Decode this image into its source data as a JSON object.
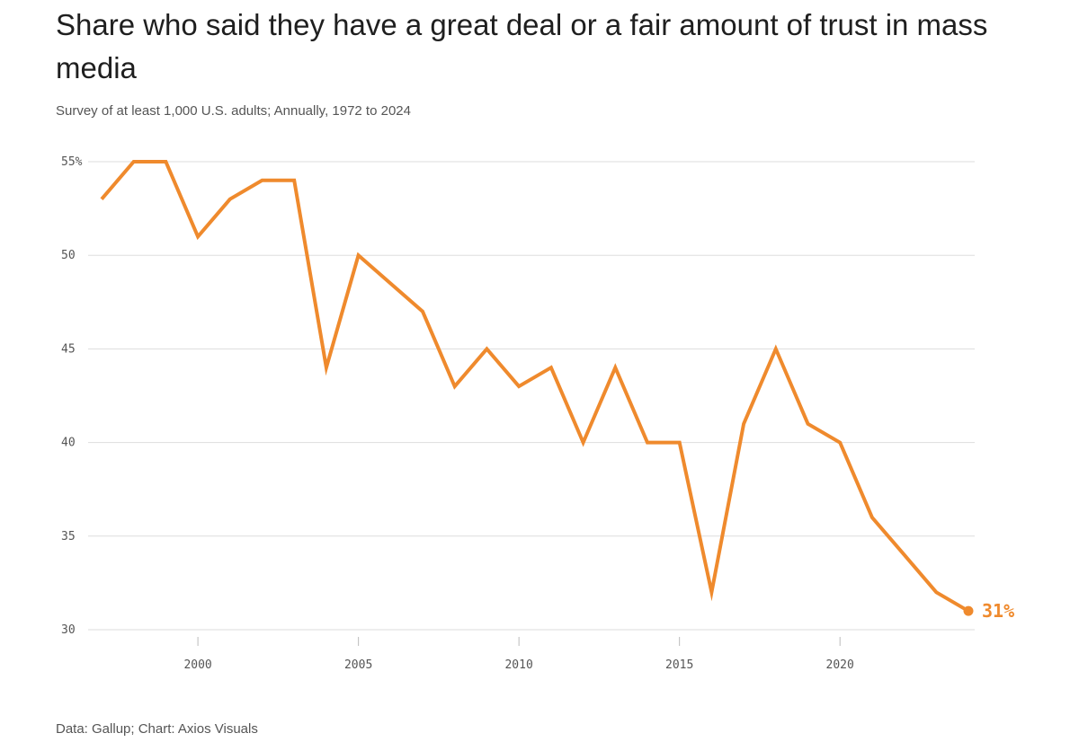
{
  "title": "Share who said they have a great deal or a fair amount of trust in mass media",
  "subtitle": "Survey of at least 1,000 U.S. adults; Annually, 1972 to 2024",
  "footer": "Data: Gallup; Chart: Axios Visuals",
  "colors": {
    "line": "#ef8a2d",
    "grid": "#dddddd",
    "text": "#555555"
  },
  "chart_data": {
    "type": "line",
    "title": "Share who said they have a great deal or a fair amount of trust in mass media",
    "subtitle": "Survey of at least 1,000 U.S. adults; Annually, 1972 to 2024",
    "xlabel": "",
    "ylabel": "",
    "xlim": [
      1997,
      2024
    ],
    "ylim": [
      30,
      55
    ],
    "grid": true,
    "legend": "none",
    "x": [
      1997,
      1998,
      1999,
      2000,
      2001,
      2002,
      2003,
      2004,
      2005,
      2006,
      2007,
      2008,
      2009,
      2010,
      2011,
      2012,
      2013,
      2014,
      2015,
      2016,
      2017,
      2018,
      2019,
      2020,
      2021,
      2022,
      2023,
      2024
    ],
    "series": [
      {
        "values": [
          53,
          55,
          55,
          51,
          53,
          54,
          54,
          44,
          50,
          48.5,
          47,
          43,
          45,
          43,
          44,
          40,
          44,
          40,
          40,
          32,
          41,
          45,
          41,
          40,
          36,
          34,
          32,
          31
        ]
      }
    ],
    "x_ticks": [
      2000,
      2005,
      2010,
      2015,
      2020
    ],
    "x_tick_labels": [
      "2000",
      "2005",
      "2010",
      "2015",
      "2020"
    ],
    "y_ticks": [
      30,
      35,
      40,
      45,
      50,
      55
    ],
    "y_tick_labels": [
      "30",
      "35",
      "40",
      "45",
      "50",
      "55%"
    ],
    "end_label": "31%"
  }
}
